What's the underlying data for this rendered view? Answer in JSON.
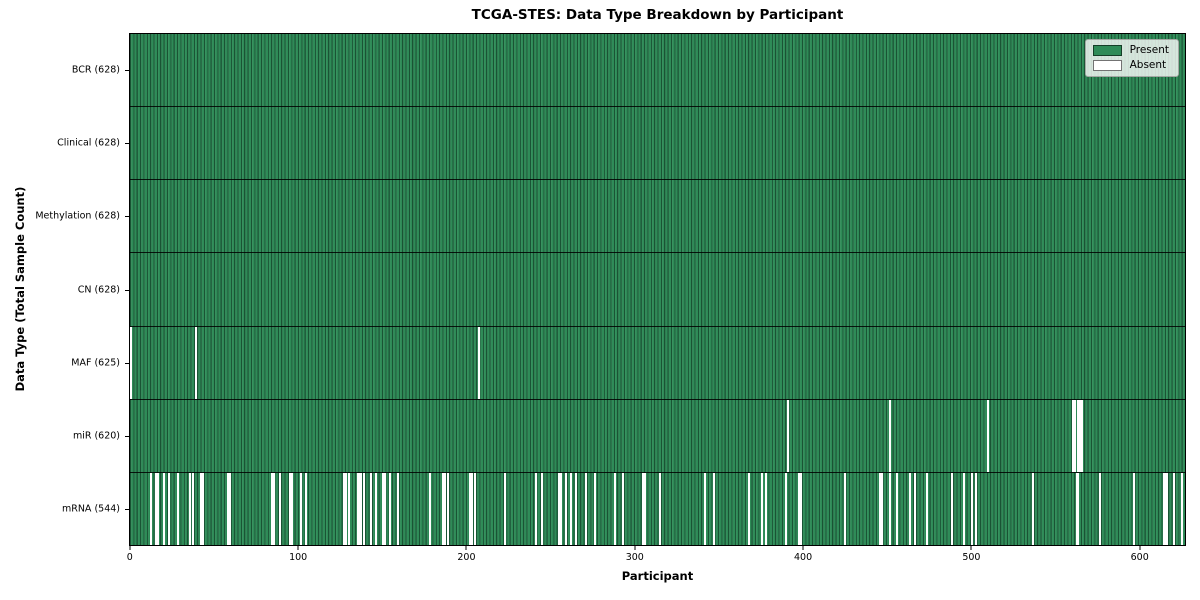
{
  "title": "TCGA-STES: Data Type Breakdown by Participant",
  "xlabel": "Participant",
  "ylabel": "Data Type (Total Sample Count)",
  "chart_data": {
    "type": "heatmap",
    "title": "TCGA-STES: Data Type Breakdown by Participant",
    "xlabel": "Participant",
    "ylabel": "Data Type (Total Sample Count)",
    "n_participants": 628,
    "x_range": [
      -0.5,
      627.5
    ],
    "x_ticks": [
      0,
      100,
      200,
      300,
      400,
      500,
      600
    ],
    "grid": false,
    "colors": {
      "present": "#2e8b57",
      "absent": "#ffffff"
    },
    "legend": {
      "position": "upper right",
      "entries": [
        {
          "label": "Present",
          "color": "#2e8b57"
        },
        {
          "label": "Absent",
          "color": "#ffffff"
        }
      ]
    },
    "rows": [
      {
        "label": "BCR (628)",
        "data_type": "BCR",
        "present_count": 628,
        "absent_count": 0,
        "absent_participants": []
      },
      {
        "label": "Clinical (628)",
        "data_type": "Clinical",
        "present_count": 628,
        "absent_count": 0,
        "absent_participants": []
      },
      {
        "label": "Methylation (628)",
        "data_type": "Methylation",
        "present_count": 628,
        "absent_count": 0,
        "absent_participants": []
      },
      {
        "label": "CN (628)",
        "data_type": "CN",
        "present_count": 628,
        "absent_count": 0,
        "absent_participants": []
      },
      {
        "label": "MAF (625)",
        "data_type": "MAF",
        "present_count": 625,
        "absent_count": 3,
        "absent_participants": [
          0,
          39,
          207
        ]
      },
      {
        "label": "miR (620)",
        "data_type": "miR",
        "present_count": 620,
        "absent_count": 8,
        "absent_participants": [
          391,
          452,
          510,
          561,
          562,
          564,
          565,
          566
        ]
      },
      {
        "label": "mRNA (544)",
        "data_type": "mRNA",
        "present_count": 544,
        "absent_count": 84,
        "absent_participants": [
          12,
          15,
          16,
          20,
          23,
          28,
          35,
          37,
          42,
          43,
          58,
          59,
          84,
          85,
          89,
          95,
          96,
          101,
          104,
          127,
          128,
          130,
          135,
          136,
          137,
          139,
          143,
          146,
          150,
          151,
          154,
          159,
          178,
          186,
          187,
          189,
          202,
          203,
          205,
          223,
          241,
          245,
          255,
          256,
          259,
          262,
          265,
          271,
          276,
          288,
          293,
          305,
          306,
          315,
          342,
          347,
          368,
          376,
          378,
          390,
          398,
          399,
          425,
          446,
          447,
          452,
          456,
          464,
          467,
          474,
          489,
          496,
          501,
          503,
          537,
          563,
          564,
          577,
          597,
          615,
          616,
          617,
          621,
          626
        ]
      }
    ]
  }
}
